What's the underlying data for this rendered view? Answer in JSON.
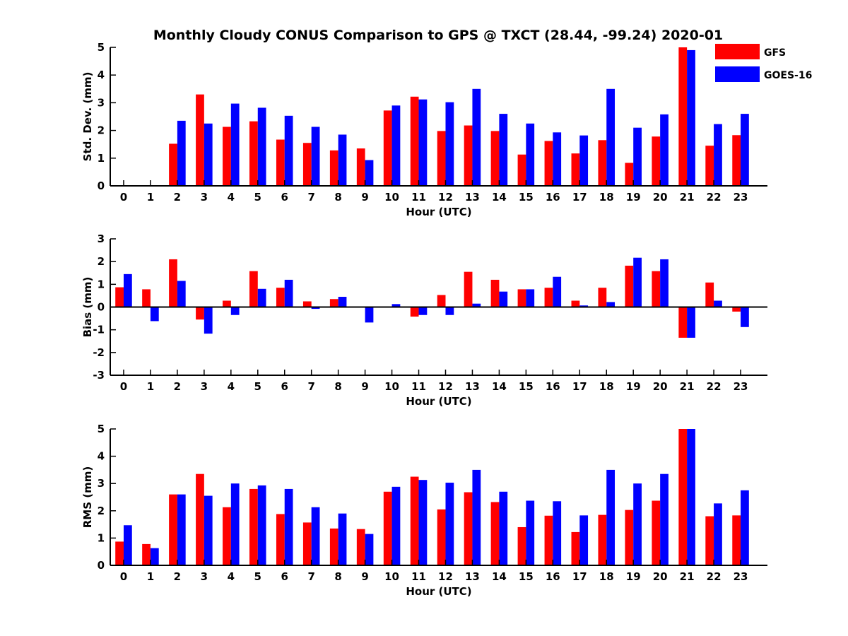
{
  "title": "Monthly Cloudy CONUS Comparison to GPS @ TXCT (28.44, -99.24) 2020-01",
  "colors": {
    "GFS": "#ff0000",
    "GOES-16": "#0000ff"
  },
  "legend": {
    "placement": "top-right",
    "entries": [
      "GFS",
      "GOES-16"
    ]
  },
  "chart_data": [
    {
      "type": "bar",
      "xlabel": "Hour (UTC)",
      "ylabel": "Std. Dev. (mm)",
      "ylim": [
        0,
        5
      ],
      "yticks": [
        0,
        1,
        2,
        3,
        4,
        5
      ],
      "categories": [
        "0",
        "1",
        "2",
        "3",
        "4",
        "5",
        "6",
        "7",
        "8",
        "9",
        "10",
        "11",
        "12",
        "13",
        "14",
        "15",
        "16",
        "17",
        "18",
        "19",
        "20",
        "21",
        "22",
        "23"
      ],
      "series": [
        {
          "name": "GFS",
          "values": [
            null,
            null,
            1.52,
            3.3,
            2.13,
            2.33,
            1.67,
            1.55,
            1.28,
            1.35,
            2.72,
            3.22,
            1.98,
            2.18,
            1.98,
            1.13,
            1.62,
            1.17,
            1.65,
            0.83,
            1.78,
            5.0,
            1.45,
            1.83
          ]
        },
        {
          "name": "GOES-16",
          "values": [
            null,
            null,
            2.35,
            2.25,
            2.97,
            2.82,
            2.53,
            2.13,
            1.85,
            0.93,
            2.9,
            3.12,
            3.02,
            3.5,
            2.6,
            2.25,
            1.93,
            1.82,
            3.5,
            2.1,
            2.58,
            4.9,
            2.23,
            2.6
          ]
        }
      ]
    },
    {
      "type": "bar",
      "xlabel": "Hour (UTC)",
      "ylabel": "Bias (mm)",
      "ylim": [
        -3,
        3
      ],
      "yticks": [
        -3,
        -2,
        -1,
        0,
        1,
        2,
        3
      ],
      "categories": [
        "0",
        "1",
        "2",
        "3",
        "4",
        "5",
        "6",
        "7",
        "8",
        "9",
        "10",
        "11",
        "12",
        "13",
        "14",
        "15",
        "16",
        "17",
        "18",
        "19",
        "20",
        "21",
        "22",
        "23"
      ],
      "series": [
        {
          "name": "GFS",
          "values": [
            0.87,
            0.78,
            2.1,
            -0.55,
            0.28,
            1.58,
            0.85,
            0.25,
            0.35,
            0.0,
            0.0,
            -0.42,
            0.53,
            1.55,
            1.2,
            0.78,
            0.85,
            0.28,
            0.85,
            1.82,
            1.58,
            -1.35,
            1.08,
            -0.2
          ]
        },
        {
          "name": "GOES-16",
          "values": [
            1.45,
            -0.62,
            1.15,
            -1.17,
            -0.35,
            0.8,
            1.2,
            -0.08,
            0.45,
            -0.68,
            0.13,
            -0.35,
            -0.35,
            0.15,
            0.68,
            0.78,
            1.33,
            0.07,
            0.22,
            2.17,
            2.1,
            -1.35,
            0.28,
            -0.88
          ]
        }
      ]
    },
    {
      "type": "bar",
      "xlabel": "Hour (UTC)",
      "ylabel": "RMS (mm)",
      "ylim": [
        0,
        5
      ],
      "yticks": [
        0,
        1,
        2,
        3,
        4,
        5
      ],
      "categories": [
        "0",
        "1",
        "2",
        "3",
        "4",
        "5",
        "6",
        "7",
        "8",
        "9",
        "10",
        "11",
        "12",
        "13",
        "14",
        "15",
        "16",
        "17",
        "18",
        "19",
        "20",
        "21",
        "22",
        "23"
      ],
      "series": [
        {
          "name": "GFS",
          "values": [
            0.87,
            0.78,
            2.6,
            3.35,
            2.13,
            2.8,
            1.88,
            1.57,
            1.35,
            1.33,
            2.7,
            3.25,
            2.05,
            2.68,
            2.32,
            1.4,
            1.82,
            1.22,
            1.85,
            2.03,
            2.37,
            5.0,
            1.8,
            1.83
          ]
        },
        {
          "name": "GOES-16",
          "values": [
            1.47,
            0.63,
            2.6,
            2.55,
            3.0,
            2.93,
            2.8,
            2.13,
            1.9,
            1.15,
            2.88,
            3.13,
            3.03,
            3.5,
            2.7,
            2.37,
            2.35,
            1.83,
            3.5,
            3.0,
            3.35,
            5.0,
            2.27,
            2.75
          ]
        }
      ]
    }
  ]
}
